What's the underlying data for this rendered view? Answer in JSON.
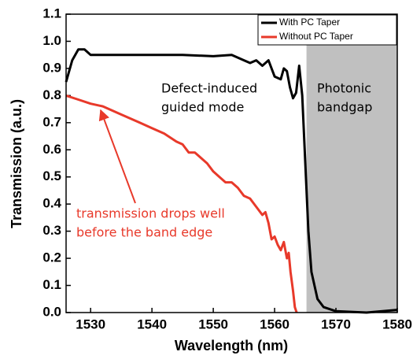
{
  "chart_data": {
    "type": "line",
    "xlabel": "Wavelength (nm)",
    "ylabel": "Transmission (a.u.)",
    "xlim": [
      1526,
      1580
    ],
    "xticks": [
      1530,
      1540,
      1550,
      1560,
      1570,
      1580
    ],
    "ylim": [
      0,
      1.1
    ],
    "yticks": [
      {
        "value": 0,
        "label": "0.0"
      },
      0.1,
      0.2,
      0.3,
      0.4,
      0.5,
      0.6,
      0.7,
      0.8,
      0.9,
      {
        "value": 1,
        "label": "1.0"
      },
      1.1
    ],
    "shaded_xrange": [
      1565.2,
      1580
    ],
    "shade_color": "#c0c0c0",
    "legend": "upper right",
    "annotations": [
      {
        "text": [
          "Defect-induced",
          "guided mode"
        ],
        "color": "#000000"
      },
      {
        "text": [
          "Photonic",
          "bandgap"
        ],
        "color": "#000000"
      },
      {
        "text": [
          "transmission drops well",
          "before the band edge"
        ],
        "color": "#e8392a"
      }
    ],
    "series": [
      {
        "name": "With PC Taper",
        "color": "#000000",
        "x": [
          1526,
          1527,
          1528,
          1529,
          1530,
          1532,
          1535,
          1540,
          1545,
          1550,
          1553,
          1555,
          1556,
          1557,
          1558,
          1559,
          1560,
          1561,
          1561.5,
          1562,
          1562.5,
          1563,
          1563.5,
          1564,
          1564.5,
          1565,
          1565.5,
          1566,
          1567,
          1568,
          1570,
          1575,
          1580
        ],
        "values": [
          0.85,
          0.93,
          0.97,
          0.97,
          0.95,
          0.95,
          0.95,
          0.95,
          0.95,
          0.945,
          0.95,
          0.93,
          0.92,
          0.93,
          0.91,
          0.93,
          0.87,
          0.86,
          0.9,
          0.89,
          0.83,
          0.79,
          0.81,
          0.91,
          0.8,
          0.55,
          0.3,
          0.15,
          0.05,
          0.02,
          0.005,
          0,
          0.01
        ]
      },
      {
        "name": "Without PC Taper",
        "color": "#e8392a",
        "x": [
          1526,
          1528,
          1530,
          1532,
          1535,
          1538,
          1540,
          1542,
          1544,
          1545,
          1546,
          1547,
          1548,
          1549,
          1550,
          1551,
          1552,
          1553,
          1554,
          1555,
          1556,
          1557,
          1558,
          1558.5,
          1559,
          1559.5,
          1560,
          1560.5,
          1561,
          1561.5,
          1562,
          1562.3,
          1562.6,
          1563,
          1563.3,
          1563.6
        ],
        "values": [
          0.8,
          0.785,
          0.77,
          0.76,
          0.73,
          0.7,
          0.68,
          0.66,
          0.63,
          0.62,
          0.59,
          0.59,
          0.57,
          0.55,
          0.52,
          0.5,
          0.48,
          0.48,
          0.46,
          0.43,
          0.42,
          0.39,
          0.36,
          0.37,
          0.33,
          0.27,
          0.28,
          0.25,
          0.23,
          0.26,
          0.2,
          0.22,
          0.15,
          0.08,
          0.02,
          0
        ]
      }
    ]
  }
}
